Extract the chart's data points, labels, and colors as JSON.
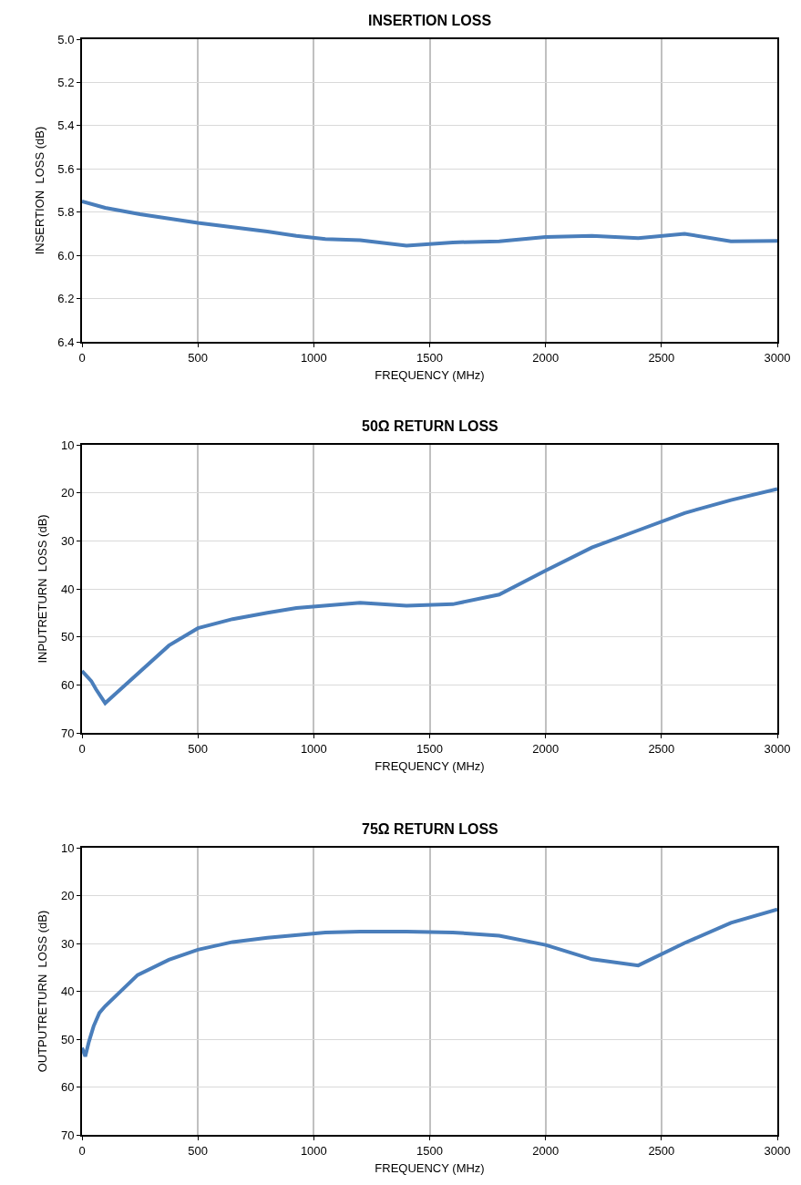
{
  "chart_data": [
    {
      "type": "line",
      "title": "INSERTION LOSS",
      "xlabel": "FREQUENCY (MHz)",
      "ylabel": "INSERTION  LOSS (dB)",
      "x": [
        0,
        100,
        250,
        375,
        500,
        650,
        800,
        925,
        1050,
        1200,
        1400,
        1600,
        1800,
        2000,
        2200,
        2400,
        2600,
        2800,
        3000
      ],
      "series": [
        {
          "color": "#4a7ebb",
          "values": [
            5.75,
            5.78,
            5.81,
            5.83,
            5.85,
            5.87,
            5.89,
            5.91,
            5.925,
            5.93,
            5.955,
            5.94,
            5.935,
            5.915,
            5.91,
            5.92,
            5.9,
            5.935,
            5.933
          ]
        }
      ],
      "xlim": [
        0,
        3000
      ],
      "xticks": [
        0,
        500,
        1000,
        1500,
        2000,
        2500,
        3000
      ],
      "ylim": [
        6.4,
        5.0
      ],
      "yticks": [
        {
          "value": 5.0,
          "label": "5.0"
        },
        5.2,
        5.4,
        5.6,
        5.8,
        {
          "value": 6.0,
          "label": "6.0"
        },
        6.2,
        6.4
      ],
      "grid": true
    },
    {
      "type": "line",
      "title": "50Ω RETURN LOSS",
      "xlabel": "FREQUENCY (MHz)",
      "ylabel": "INPUTRETURN  LOSS (dB)",
      "x": [
        0,
        40,
        60,
        100,
        375,
        500,
        650,
        800,
        925,
        1200,
        1400,
        1600,
        1800,
        2000,
        2200,
        2400,
        2600,
        2800,
        3000
      ],
      "series": [
        {
          "color": "#4a7ebb",
          "values": [
            57.1,
            59.2,
            60.9,
            63.8,
            51.8,
            48.2,
            46.3,
            45.0,
            44.0,
            42.9,
            43.5,
            43.2,
            41.2,
            36.2,
            31.4,
            27.8,
            24.2,
            21.5,
            19.2
          ]
        }
      ],
      "xlim": [
        0,
        3000
      ],
      "xticks": [
        0,
        500,
        1000,
        1500,
        2000,
        2500,
        3000
      ],
      "ylim": [
        70,
        10
      ],
      "yticks": [
        10,
        20,
        30,
        40,
        50,
        60,
        70
      ],
      "grid": true
    },
    {
      "type": "line",
      "title": "75Ω RETURN LOSS",
      "xlabel": "FREQUENCY (MHz)",
      "ylabel": "OUTPUTRETURN  LOSS (dB)",
      "x": [
        0,
        14,
        30,
        50,
        75,
        100,
        240,
        375,
        500,
        650,
        800,
        1050,
        1200,
        1400,
        1600,
        1800,
        2000,
        2200,
        2400,
        2600,
        2800,
        3000
      ],
      "series": [
        {
          "color": "#4a7ebb",
          "values": [
            51.8,
            53.6,
            50.5,
            47.3,
            44.5,
            43.1,
            36.6,
            33.4,
            31.3,
            29.7,
            28.8,
            27.7,
            27.5,
            27.5,
            27.7,
            28.4,
            30.3,
            33.3,
            34.6,
            29.9,
            25.7,
            22.9
          ]
        }
      ],
      "xlim": [
        0,
        3000
      ],
      "xticks": [
        0,
        500,
        1000,
        1500,
        2000,
        2500,
        3000
      ],
      "ylim": [
        70,
        10
      ],
      "yticks": [
        10,
        20,
        30,
        40,
        50,
        60,
        70
      ],
      "grid": true
    }
  ]
}
